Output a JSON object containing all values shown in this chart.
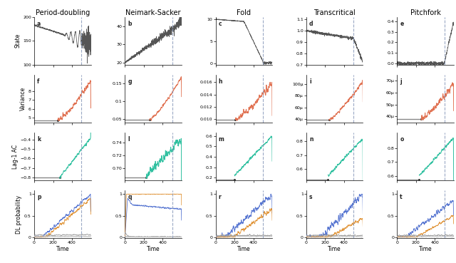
{
  "columns": [
    "Period-doubling",
    "Neimark-Sacker",
    "Fold",
    "Transcritical",
    "Pitchfork"
  ],
  "row_labels": [
    "State",
    "Variance",
    "Lag-1 AC",
    "DL probability"
  ],
  "panel_labels": [
    "a",
    "b",
    "c",
    "d",
    "e",
    "f",
    "g",
    "h",
    "i",
    "j",
    "k",
    "l",
    "m",
    "n",
    "o",
    "p",
    "q",
    "r",
    "s",
    "t"
  ],
  "bifurcation_time": 500,
  "total_time": 600,
  "dashed_line_color": "#8899bb",
  "state_color": "#555555",
  "variance_color": "#e07050",
  "ac_color": "#30c0a0",
  "dl_blue": "#4466cc",
  "dl_orange": "#dd8822",
  "dl_gray1": "#999999",
  "dl_gray2": "#bbbbbb",
  "dl_gray3": "#cccccc"
}
